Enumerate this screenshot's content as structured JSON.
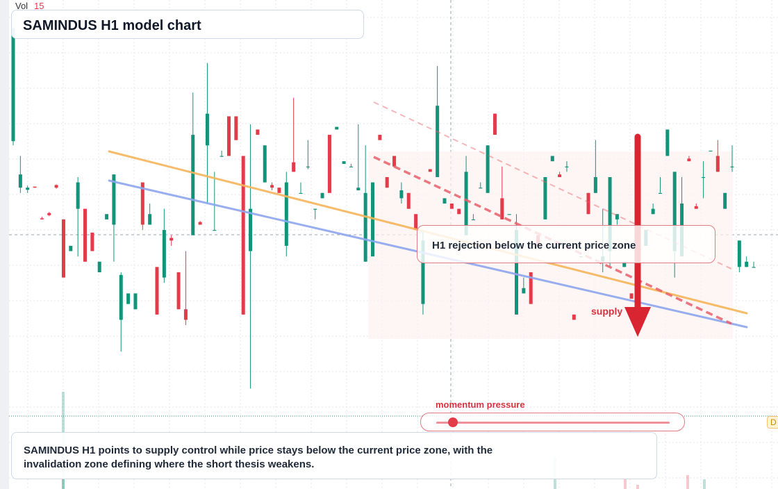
{
  "header": {
    "volume_label": "Vol",
    "volume_value": "15"
  },
  "chart_data": {
    "type": "candlestick",
    "symbol": "SAMINDUS",
    "timeframe": "H1",
    "title": "SAMINDUS H1 model chart",
    "xlabel": "",
    "ylabel": "",
    "grid": true,
    "colors": {
      "up": "#12937a",
      "down": "#e23b4a",
      "trend_upper": "#f6b55b",
      "trend_lower": "#8ea6ee",
      "supply_line": "#e9606b"
    },
    "candles": [
      [
        48.58,
        50.72,
        50.0,
        48.5
      ],
      [
        47.7,
        47.95,
        48.3,
        47.6
      ],
      [
        47.66,
        47.7,
        47.74,
        47.6
      ],
      [
        47.72,
        47.7,
        47.72,
        47.7
      ],
      [
        47.12,
        47.1,
        47.15,
        47.1
      ],
      [
        47.22,
        47.18,
        47.24,
        47.16
      ],
      [
        47.75,
        47.7,
        47.76,
        47.68
      ],
      [
        47.1,
        46.0,
        46.0,
        46.0
      ],
      [
        46.5,
        46.6,
        46.5,
        46.58
      ],
      [
        47.3,
        47.8,
        47.9,
        46.4
      ],
      [
        47.3,
        46.3,
        46.4,
        47.3
      ],
      [
        46.85,
        46.5,
        46.6,
        46.75
      ],
      [
        46.1,
        46.3,
        45.9,
        46.3
      ],
      [
        47.1,
        47.2,
        47.1,
        47.15
      ],
      [
        47.0,
        47.95,
        47.9,
        46.3
      ],
      [
        45.2,
        46.05,
        46.1,
        44.6
      ],
      [
        45.5,
        45.7,
        45.55,
        45.7
      ],
      [
        45.4,
        45.7,
        45.5,
        46.0
      ],
      [
        47.8,
        47.0,
        46.2,
        46.9
      ],
      [
        47.0,
        47.2,
        47.4,
        47.1
      ],
      [
        46.2,
        45.3,
        45.4,
        46.5
      ],
      [
        46.0,
        46.9,
        47.3,
        45.9
      ],
      [
        46.75,
        46.7,
        46.8,
        46.6
      ],
      [
        46.1,
        45.4,
        45.5,
        46.2
      ],
      [
        45.4,
        45.2,
        46.5,
        45.1
      ],
      [
        46.8,
        48.7,
        49.5,
        46.9
      ],
      [
        47.05,
        47.0,
        47.07,
        47.0
      ],
      [
        48.5,
        49.1,
        50.06,
        47.4
      ],
      [
        46.9,
        46.9,
        48.0,
        46.9
      ],
      [
        48.3,
        48.3,
        48.4,
        48.3
      ],
      [
        49.05,
        48.3,
        48.4,
        49.2
      ],
      [
        49.05,
        48.6,
        49.0,
        49.15
      ],
      [
        48.3,
        45.3,
        45.2,
        48.8
      ],
      [
        46.5,
        47.3,
        48.9,
        43.9
      ],
      [
        48.8,
        48.7,
        48.7,
        48.85
      ],
      [
        47.8,
        48.5,
        47.6,
        48.5
      ],
      [
        47.75,
        47.7,
        47.8,
        47.65
      ],
      [
        47.7,
        47.6,
        47.7,
        47.75
      ],
      [
        46.6,
        47.8,
        48.0,
        46.4
      ],
      [
        48.18,
        48.0,
        49.4,
        48.0
      ],
      [
        47.6,
        47.6,
        47.8,
        47.6
      ],
      [
        48.1,
        48.1,
        48.6,
        48.05
      ],
      [
        47.3,
        47.3,
        47.0,
        47.1
      ],
      [
        47.5,
        47.6,
        47.6,
        47.5
      ],
      [
        48.7,
        47.6,
        48.7,
        48.9
      ],
      [
        48.8,
        48.85,
        48.85,
        48.8
      ],
      [
        48.15,
        48.2,
        48.2,
        48.15
      ],
      [
        48.1,
        48.1,
        48.15,
        48.1
      ],
      [
        47.65,
        47.7,
        48.9,
        47.7
      ],
      [
        46.3,
        47.6,
        48.5,
        46.3
      ],
      [
        46.4,
        47.8,
        47.8,
        46.4
      ],
      [
        48.7,
        48.6,
        48.7,
        48.8
      ],
      [
        47.9,
        47.7,
        47.7,
        48.0
      ],
      [
        48.3,
        48.1,
        48.3,
        48.3
      ],
      [
        47.5,
        47.65,
        47.8,
        47.4
      ],
      [
        47.6,
        47.3,
        47.4,
        47.7
      ],
      [
        47.2,
        46.9,
        47.0,
        47.25
      ],
      [
        45.5,
        46.7,
        46.9,
        45.3
      ],
      [
        48.05,
        48.0,
        48.05,
        48.0
      ],
      [
        47.9,
        49.25,
        50.0,
        47.9
      ],
      [
        47.4,
        47.5,
        47.4,
        47.45
      ],
      [
        47.4,
        47.3,
        47.3,
        47.3
      ],
      [
        47.3,
        47.2,
        47.3,
        47.3
      ],
      [
        46.8,
        48.0,
        48.3,
        46.8
      ],
      [
        47.1,
        47.1,
        47.2,
        47.1
      ],
      [
        47.7,
        47.7,
        47.8,
        47.7
      ],
      [
        47.6,
        48.5,
        48.0,
        48.6
      ],
      [
        49.1,
        48.7,
        48.7,
        49.1
      ],
      [
        47.5,
        47.1,
        48.1,
        47.5
      ],
      [
        47.2,
        47.2,
        47.2,
        47.3
      ],
      [
        45.3,
        46.9,
        47.2,
        45.3
      ],
      [
        45.7,
        45.8,
        46.0,
        45.7
      ],
      [
        46.1,
        45.5,
        45.8,
        46.6
      ],
      [
        46.8,
        46.6,
        46.4,
        46.8
      ],
      [
        47.1,
        47.9,
        47.8,
        47.1
      ],
      [
        48.2,
        48.3,
        48.3,
        48.2
      ],
      [
        47.95,
        47.9,
        48.0,
        48.0
      ],
      [
        48.1,
        48.1,
        48.2,
        48.0
      ],
      [
        45.3,
        45.2,
        45.1,
        45.4
      ],
      [
        46.4,
        46.4,
        46.4,
        46.4
      ],
      [
        47.6,
        47.2,
        47.3,
        47.9
      ],
      [
        47.6,
        47.9,
        48.6,
        47.6
      ],
      [
        46.3,
        46.4,
        47.3,
        46.1
      ],
      [
        46.5,
        47.9,
        47.9,
        46.2
      ],
      [
        47.1,
        47.2,
        47.2,
        47.0
      ],
      [
        46.2,
        46.3,
        46.2,
        46.3
      ],
      [
        45.7,
        45.6,
        45.7,
        45.8
      ],
      [
        47.7,
        47.8,
        47.8,
        47.6
      ],
      [
        46.6,
        46.9,
        46.8,
        46.7
      ],
      [
        47.2,
        47.3,
        47.4,
        47.2
      ],
      [
        47.6,
        47.6,
        47.9,
        47.6
      ],
      [
        48.3,
        48.8,
        48.8,
        48.3
      ],
      [
        46.5,
        48.0,
        48.0,
        46.0
      ],
      [
        46.4,
        47.4,
        47.9,
        46.4
      ],
      [
        48.25,
        48.2,
        48.3,
        48.2
      ],
      [
        47.35,
        47.3,
        47.4,
        47.3
      ],
      [
        47.9,
        47.9,
        48.2,
        47.5
      ],
      [
        48.4,
        48.4,
        48.4,
        48.4
      ],
      [
        48.3,
        48.0,
        48.6,
        48.3
      ],
      [
        47.3,
        47.6,
        47.5,
        47.3
      ],
      [
        48.1,
        48.1,
        48.5,
        48.0
      ],
      [
        46.2,
        46.7,
        46.7,
        46.1
      ],
      [
        46.2,
        46.3,
        46.4,
        46.2
      ],
      [
        46.2,
        46.2,
        46.3,
        46.2
      ]
    ],
    "overlays": {
      "trendlines": [
        "upper",
        "lower",
        "supply",
        "supply_projection"
      ],
      "arrow": "down"
    },
    "annotations": {
      "rejection_text": "H1 rejection below the current price zone",
      "supply_label": "supply",
      "momentum_label": "momentum pressure",
      "momentum_level": 0.07,
      "summary_text": "SAMINDUS H1 points to supply control while price stays below the current price zone, with the invalidation zone defining where the short thesis weakens.",
      "price_tag": "D"
    }
  }
}
